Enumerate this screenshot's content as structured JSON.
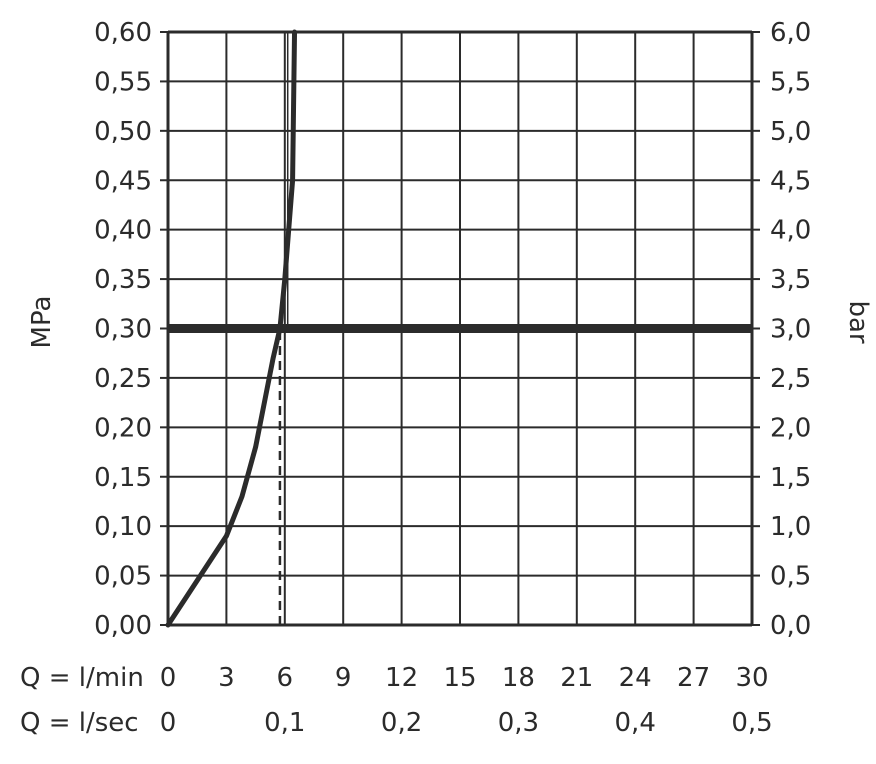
{
  "chart_data": {
    "type": "line",
    "y_left": {
      "label": "MPa",
      "range": [
        0,
        0.6
      ],
      "ticks": [
        0.0,
        0.05,
        0.1,
        0.15,
        0.2,
        0.25,
        0.3,
        0.35,
        0.4,
        0.45,
        0.5,
        0.55,
        0.6
      ],
      "tick_labels": [
        "0,00",
        "0,05",
        "0,10",
        "0,15",
        "0,20",
        "0,25",
        "0,30",
        "0,35",
        "0,40",
        "0,45",
        "0,50",
        "0,55",
        "0,60"
      ]
    },
    "y_right": {
      "label": "bar",
      "tick_labels": [
        "0,0",
        "0,5",
        "1,0",
        "1,5",
        "2,0",
        "2,5",
        "3,0",
        "3,5",
        "4,0",
        "4,5",
        "5,0",
        "5,5",
        "6,0"
      ]
    },
    "x_lmin": {
      "label": "Q = l/min",
      "range": [
        0,
        30
      ],
      "ticks": [
        0,
        3,
        6,
        9,
        12,
        15,
        18,
        21,
        24,
        27,
        30
      ],
      "tick_labels": [
        "0",
        "3",
        "6",
        "9",
        "12",
        "15",
        "18",
        "21",
        "24",
        "27",
        "30"
      ]
    },
    "x_lsec": {
      "label": "Q = l/sec",
      "ticks": [
        0,
        6,
        12,
        18,
        24,
        30
      ],
      "tick_labels": [
        "0",
        "0,1",
        "0,2",
        "0,3",
        "0,4",
        "0,5"
      ]
    },
    "grid": true,
    "series": [
      {
        "x": [
          0,
          1.5,
          3,
          3.8,
          4.5,
          5.0,
          5.4,
          5.75,
          6.0,
          6.2,
          6.4,
          6.5
        ],
        "y": [
          0,
          0.045,
          0.09,
          0.13,
          0.18,
          0.23,
          0.27,
          0.3,
          0.35,
          0.4,
          0.45,
          0.6
        ]
      }
    ],
    "reference_lines": [
      {
        "orientation": "horizontal",
        "y": 0.3,
        "style": "bold"
      },
      {
        "orientation": "vertical",
        "x": 5.75,
        "y_from": 0,
        "y_to": 0.3,
        "style": "dashed"
      },
      {
        "orientation": "vertical",
        "x": 6.15,
        "y_from": 0.3,
        "y_to": 0.6,
        "style": "thin"
      }
    ]
  }
}
